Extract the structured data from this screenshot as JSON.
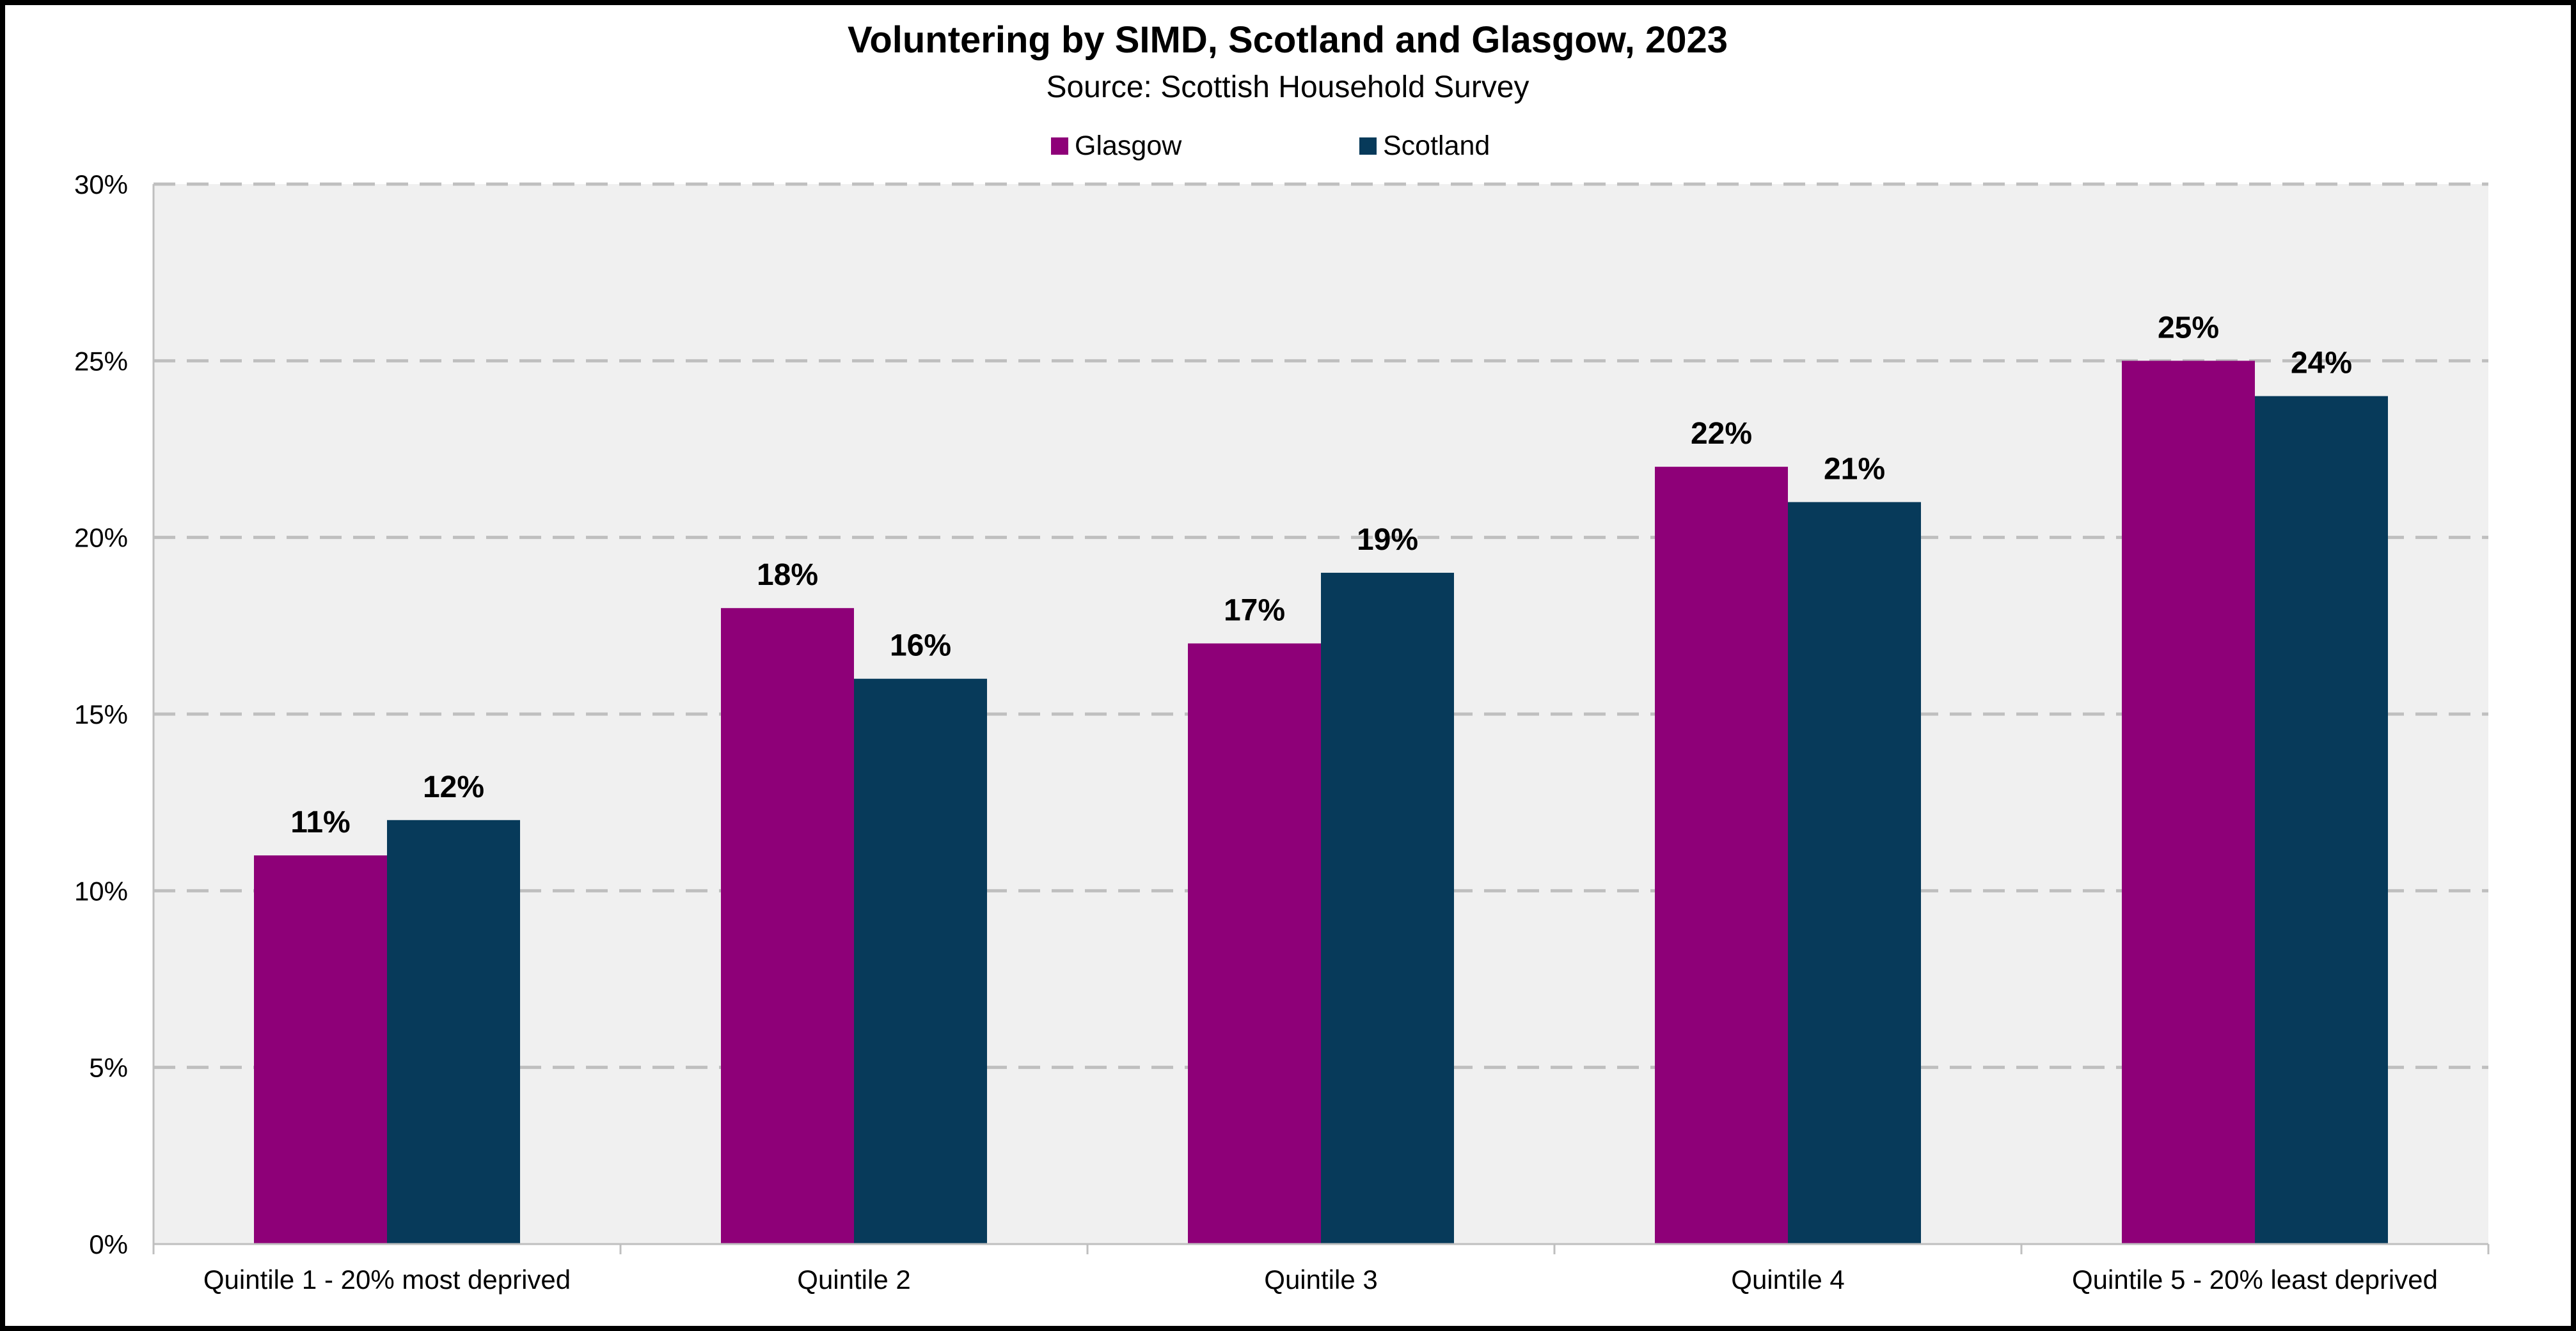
{
  "chart_data": {
    "type": "bar",
    "title": "Voluntering by SIMD, Scotland and Glasgow, 2023",
    "subtitle": "Source: Scottish Household Survey",
    "categories": [
      "Quintile 1 - 20% most deprived",
      "Quintile 2",
      "Quintile 3",
      "Quintile 4",
      "Quintile 5 - 20% least deprived"
    ],
    "series": [
      {
        "name": "Glasgow",
        "color": "#8E0078",
        "values": [
          11,
          18,
          17,
          22,
          25
        ],
        "labels": [
          "11%",
          "18%",
          "17%",
          "22%",
          "25%"
        ]
      },
      {
        "name": "Scotland",
        "color": "#073A5A",
        "values": [
          12,
          16,
          19,
          21,
          24
        ],
        "labels": [
          "12%",
          "16%",
          "19%",
          "21%",
          "24%"
        ]
      }
    ],
    "y_ticks": [
      {
        "value": 0,
        "label": "0%"
      },
      {
        "value": 5,
        "label": "5%"
      },
      {
        "value": 10,
        "label": "10%"
      },
      {
        "value": 15,
        "label": "15%"
      },
      {
        "value": 20,
        "label": "20%"
      },
      {
        "value": 25,
        "label": "25%"
      },
      {
        "value": 30,
        "label": "30%"
      }
    ],
    "ylim": [
      0,
      30
    ],
    "xlabel": "",
    "ylabel": "",
    "grid": "horizontal dashed",
    "legend_position": "top",
    "plot_background": "#F0F0F0"
  }
}
